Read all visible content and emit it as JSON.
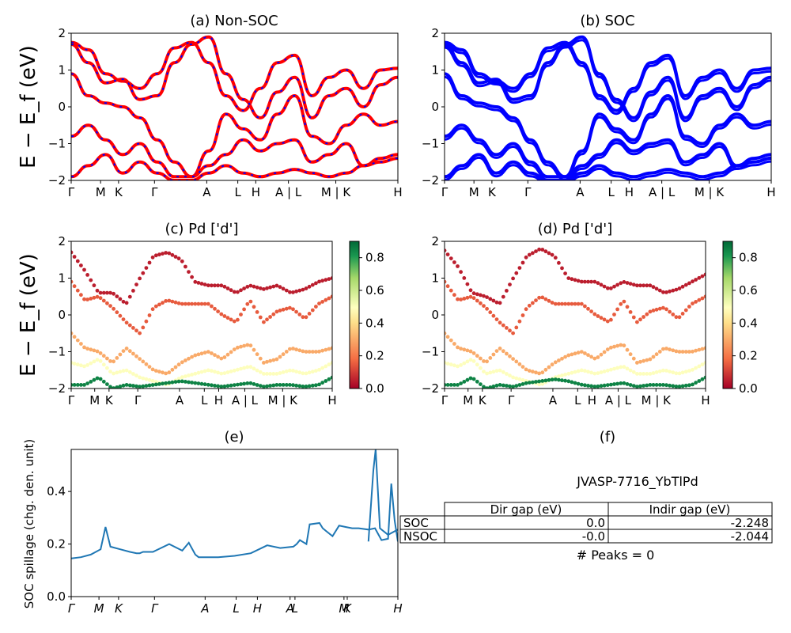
{
  "ylabel_energy": "E − E_f (eV)",
  "kpath_labels": [
    "Γ",
    "M",
    "K",
    "Γ",
    "A",
    "L",
    "H",
    "A | L",
    "M | K",
    "H"
  ],
  "energy_ticks": [
    "2",
    "1",
    "0",
    "−1",
    "−2"
  ],
  "colorbar_ticks": [
    "0.8",
    "0.6",
    "0.4",
    "0.2",
    "0.0"
  ],
  "colors": {
    "nonsoc_line": "#ff0000",
    "nonsoc_dash": "#0000ff",
    "soc_line": "#0000ff",
    "spillage_line": "#1f77b4"
  },
  "chart_data": [
    {
      "id": "a",
      "type": "line",
      "title": "(a) Non-SOC",
      "ylabel": "E − E_f (eV)",
      "ylim": [
        -2,
        2
      ],
      "x_ticks": [
        "Γ",
        "M",
        "K",
        "Γ",
        "A",
        "L",
        "H",
        "A | L",
        "M | K",
        "H"
      ],
      "series": [
        {
          "values": [
            1.75,
            1.55,
            0.9,
            0.7,
            0.5,
            0.9,
            1.6,
            1.75,
            1.2,
            0.3,
            -0.1,
            0.5,
            1.2,
            1.4,
            0.3,
            0.8,
            1.0,
            0.5,
            1.0,
            1.05
          ]
        },
        {
          "values": [
            1.7,
            1.2,
            0.65,
            0.75,
            0.2,
            0.3,
            1.2,
            1.7,
            1.9,
            0.9,
            0.2,
            -0.3,
            0.4,
            0.8,
            -0.3,
            0.3,
            0.5,
            0.0,
            0.6,
            0.8
          ]
        },
        {
          "values": [
            0.9,
            0.3,
            0.1,
            0.0,
            -0.3,
            -0.9,
            -1.5,
            -1.9,
            -1.2,
            -0.2,
            -0.6,
            -0.9,
            -0.2,
            0.3,
            -0.8,
            -1.0,
            -0.5,
            -0.2,
            -0.5,
            -0.4
          ]
        },
        {
          "values": [
            -0.8,
            -0.5,
            -0.9,
            -1.3,
            -1.0,
            -1.5,
            -1.9,
            -1.9,
            -1.6,
            -1.3,
            -0.9,
            -1.2,
            -1.0,
            -0.9,
            -1.5,
            -1.3,
            -1.0,
            -1.6,
            -1.4,
            -1.3
          ]
        },
        {
          "values": [
            -1.9,
            -1.6,
            -1.3,
            -1.8,
            -1.5,
            -1.8,
            -2.0,
            -2.0,
            -1.8,
            -1.6,
            -1.8,
            -1.9,
            -1.8,
            -1.7,
            -1.8,
            -1.9,
            -1.8,
            -1.6,
            -1.5,
            -1.4
          ]
        }
      ]
    },
    {
      "id": "b",
      "type": "line",
      "title": "(b) SOC",
      "ylim": [
        -2,
        2
      ],
      "x_ticks": [
        "Γ",
        "M",
        "K",
        "Γ",
        "A",
        "L",
        "H",
        "A | L",
        "M | K",
        "H"
      ],
      "series": [
        {
          "values": [
            1.75,
            1.55,
            0.9,
            0.7,
            0.5,
            0.9,
            1.6,
            1.75,
            1.2,
            0.3,
            -0.1,
            0.5,
            1.2,
            1.4,
            0.3,
            0.8,
            1.0,
            0.5,
            1.0,
            1.05
          ]
        },
        {
          "values": [
            1.7,
            1.2,
            0.65,
            0.75,
            0.2,
            0.3,
            1.2,
            1.7,
            1.9,
            0.9,
            0.2,
            -0.3,
            0.4,
            0.8,
            -0.3,
            0.3,
            0.5,
            0.0,
            0.6,
            0.8
          ]
        },
        {
          "values": [
            0.9,
            0.3,
            0.1,
            0.0,
            -0.3,
            -0.9,
            -1.5,
            -1.9,
            -1.2,
            -0.2,
            -0.6,
            -0.9,
            -0.2,
            0.3,
            -0.8,
            -1.0,
            -0.5,
            -0.2,
            -0.5,
            -0.4
          ]
        },
        {
          "values": [
            -0.8,
            -0.5,
            -0.9,
            -1.3,
            -1.0,
            -1.5,
            -1.9,
            -1.9,
            -1.6,
            -1.3,
            -0.9,
            -1.2,
            -1.0,
            -0.9,
            -1.5,
            -1.3,
            -1.0,
            -1.6,
            -1.4,
            -1.3
          ]
        },
        {
          "values": [
            -1.9,
            -1.6,
            -1.3,
            -1.8,
            -1.5,
            -1.8,
            -2.0,
            -2.0,
            -1.8,
            -1.6,
            -1.8,
            -1.9,
            -1.8,
            -1.7,
            -1.8,
            -1.9,
            -1.8,
            -1.6,
            -1.5,
            -1.4
          ]
        }
      ]
    },
    {
      "id": "c",
      "type": "scatter",
      "title": "(c)  Pd ['d']",
      "ylabel": "E − E_f (eV)",
      "ylim": [
        -2,
        2
      ],
      "colorbar_range": [
        0.0,
        0.9
      ],
      "colormap": "RdYlGn",
      "x_ticks": [
        "Γ",
        "M",
        "K",
        "Γ",
        "A",
        "L",
        "H",
        "A | L",
        "M | K",
        "H"
      ],
      "series": [
        {
          "values": [
            1.7,
            1.2,
            0.6,
            0.6,
            0.3,
            1.0,
            1.6,
            1.7,
            1.5,
            0.9,
            0.8,
            0.8,
            0.6,
            0.8,
            0.7,
            0.8,
            0.6,
            0.7,
            0.9,
            1.0
          ],
          "weight": 0.05
        },
        {
          "values": [
            0.9,
            0.4,
            0.5,
            0.2,
            -0.2,
            -0.5,
            0.2,
            0.4,
            0.3,
            0.3,
            0.3,
            0.0,
            -0.2,
            0.4,
            -0.2,
            0.1,
            0.2,
            -0.1,
            0.3,
            0.5
          ],
          "weight": 0.15
        },
        {
          "values": [
            -0.5,
            -0.9,
            -1.0,
            -1.3,
            -0.9,
            -1.2,
            -1.5,
            -1.6,
            -1.3,
            -1.1,
            -1.0,
            -1.2,
            -0.9,
            -0.8,
            -1.3,
            -1.2,
            -0.9,
            -1.0,
            -1.0,
            -0.9
          ],
          "weight": 0.3
        },
        {
          "values": [
            -1.3,
            -1.4,
            -1.2,
            -1.6,
            -1.5,
            -1.7,
            -1.8,
            -1.9,
            -1.7,
            -1.6,
            -1.5,
            -1.6,
            -1.5,
            -1.4,
            -1.6,
            -1.6,
            -1.5,
            -1.6,
            -1.5,
            -1.3
          ],
          "weight": 0.5
        },
        {
          "values": [
            -1.9,
            -1.9,
            -1.7,
            -2.0,
            -1.9,
            -1.95,
            -1.9,
            -1.85,
            -1.8,
            -1.85,
            -1.9,
            -1.95,
            -1.9,
            -1.85,
            -1.95,
            -1.9,
            -1.9,
            -1.95,
            -1.9,
            -1.7
          ],
          "weight": 0.85
        }
      ]
    },
    {
      "id": "d",
      "type": "scatter",
      "title": "(d) Pd ['d']",
      "ylim": [
        -2,
        2
      ],
      "colorbar_range": [
        0.0,
        0.9
      ],
      "colormap": "RdYlGn",
      "x_ticks": [
        "Γ",
        "M",
        "K",
        "Γ",
        "A",
        "L",
        "H",
        "A | L",
        "M | K",
        "H"
      ],
      "series": [
        {
          "values": [
            1.75,
            1.3,
            0.6,
            0.5,
            0.3,
            1.0,
            1.6,
            1.8,
            1.6,
            1.0,
            0.9,
            0.9,
            0.7,
            0.9,
            0.8,
            0.8,
            0.6,
            0.7,
            0.9,
            1.1
          ],
          "weight": 0.05
        },
        {
          "values": [
            0.9,
            0.4,
            0.5,
            0.2,
            -0.2,
            -0.5,
            0.2,
            0.5,
            0.3,
            0.3,
            0.3,
            0.0,
            -0.2,
            0.4,
            -0.2,
            0.1,
            0.2,
            -0.1,
            0.3,
            0.5
          ],
          "weight": 0.15
        },
        {
          "values": [
            -0.5,
            -0.9,
            -1.0,
            -1.3,
            -0.9,
            -1.2,
            -1.5,
            -1.6,
            -1.3,
            -1.1,
            -1.0,
            -1.2,
            -0.9,
            -0.8,
            -1.3,
            -1.2,
            -0.9,
            -1.0,
            -1.0,
            -0.9
          ],
          "weight": 0.3
        },
        {
          "values": [
            -1.3,
            -1.4,
            -1.2,
            -1.6,
            -1.5,
            -1.7,
            -1.8,
            -1.9,
            -1.7,
            -1.6,
            -1.5,
            -1.6,
            -1.5,
            -1.4,
            -1.6,
            -1.6,
            -1.5,
            -1.6,
            -1.5,
            -1.3
          ],
          "weight": 0.5
        },
        {
          "values": [
            -1.9,
            -1.9,
            -1.7,
            -2.0,
            -1.9,
            -1.95,
            -1.85,
            -1.8,
            -1.75,
            -1.8,
            -1.9,
            -1.95,
            -1.9,
            -1.85,
            -1.95,
            -1.9,
            -1.9,
            -1.95,
            -1.9,
            -1.7
          ],
          "weight": 0.85
        }
      ]
    },
    {
      "id": "e",
      "type": "line",
      "title": "(e)",
      "ylabel": "SOC spillage (chg. den. unit)",
      "ylim": [
        0.0,
        0.56
      ],
      "y_ticks": [
        "0.4",
        "0.2",
        "0.0"
      ],
      "x_ticks": [
        "Γ",
        "M",
        "K",
        "Γ",
        "A",
        "L",
        "H",
        "A",
        "L",
        "M",
        "K",
        "H"
      ],
      "x": [
        0.0,
        0.03,
        0.06,
        0.09,
        0.105,
        0.12,
        0.15,
        0.18,
        0.2,
        0.21,
        0.22,
        0.25,
        0.3,
        0.34,
        0.36,
        0.38,
        0.39,
        0.405,
        0.42,
        0.45,
        0.5,
        0.55,
        0.6,
        0.64,
        0.68,
        0.69,
        0.7,
        0.72,
        0.73,
        0.76,
        0.77,
        0.78,
        0.8,
        0.82,
        0.84,
        0.86,
        0.88,
        0.91,
        0.93,
        0.95,
        0.97,
        0.98,
        0.99,
        1.0
      ],
      "y": [
        0.145,
        0.15,
        0.16,
        0.18,
        0.265,
        0.19,
        0.18,
        0.17,
        0.165,
        0.165,
        0.17,
        0.17,
        0.2,
        0.175,
        0.205,
        0.16,
        0.15,
        0.15,
        0.15,
        0.15,
        0.155,
        0.165,
        0.195,
        0.185,
        0.19,
        0.2,
        0.215,
        0.2,
        0.275,
        0.28,
        0.26,
        0.25,
        0.23,
        0.27,
        0.265,
        0.26,
        0.26,
        0.255,
        0.26,
        0.215,
        0.22,
        0.43,
        0.29,
        0.21
      ]
    }
  ],
  "gap_panel": {
    "title": "(f)",
    "material": "JVASP-7716_YbTlPd",
    "col_headers": [
      "Dir gap (eV)",
      "Indir gap (eV)"
    ],
    "rows": [
      {
        "label": "SOC",
        "dir": "0.0",
        "indir": "-2.248"
      },
      {
        "label": "NSOC",
        "dir": "-0.0",
        "indir": "-2.044"
      }
    ],
    "peaks": "# Peaks = 0"
  }
}
